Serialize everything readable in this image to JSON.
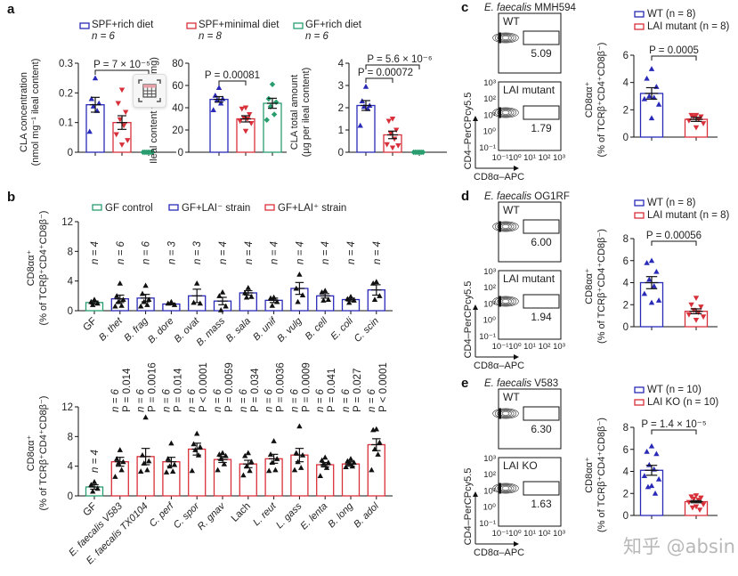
{
  "colors": {
    "blue": "#2a2ab8",
    "red": "#d8303a",
    "green": "#2a9d6f",
    "black": "#111111"
  },
  "overlay_icon": "table-view-icon",
  "watermark": "知乎 @absin",
  "chart_data": [
    {
      "panel": "a",
      "type": "bar",
      "legend": [
        {
          "label": "SPF+rich diet",
          "n": "n = 6",
          "color": "blue"
        },
        {
          "label": "SPF+minimal diet",
          "n": "n = 8",
          "color": "red"
        },
        {
          "label": "GF+rich diet",
          "n": "n = 6",
          "color": "green"
        }
      ],
      "subplots": [
        {
          "ylabel": [
            "CLA concentration",
            "(nmol mg⁻¹ ileal content)"
          ],
          "ylim": [
            0,
            0.3
          ],
          "yticks": [
            0,
            0.1,
            0.2,
            0.3
          ],
          "ytick_labels": [
            "0",
            "0.1",
            "0.2",
            "0.3"
          ],
          "groups": [
            {
              "name": "SPF+rich diet",
              "color": "blue",
              "marker": "up",
              "mean": 0.16,
              "sem": 0.025,
              "points": [
                0.25,
                0.18,
                0.165,
                0.155,
                0.14,
                0.07
              ]
            },
            {
              "name": "SPF+minimal diet",
              "color": "red",
              "marker": "down",
              "mean": 0.1,
              "sem": 0.023,
              "points": [
                0.21,
                0.165,
                0.135,
                0.11,
                0.09,
                0.06,
                0.04,
                0.025
              ]
            },
            {
              "name": "GF+rich diet",
              "color": "green",
              "marker": "diamond",
              "mean": 0,
              "sem": 0,
              "points": [
                0,
                0,
                0,
                0,
                0,
                0
              ]
            }
          ],
          "comparisons": [
            {
              "from": 0,
              "to": 2,
              "label": "P = 7 × 10⁻⁵",
              "level": 1
            }
          ]
        },
        {
          "ylabel": [
            "Ileal content weight (mg)"
          ],
          "ylim": [
            0,
            80
          ],
          "yticks": [
            0,
            20,
            40,
            60,
            80
          ],
          "ytick_labels": [
            "0",
            "20",
            "40",
            "60",
            "80"
          ],
          "groups": [
            {
              "name": "SPF+rich diet",
              "color": "blue",
              "marker": "up",
              "mean": 47.5,
              "sem": 2.5,
              "points": [
                58,
                51,
                48,
                47,
                44,
                38
              ]
            },
            {
              "name": "SPF+minimal diet",
              "color": "red",
              "marker": "down",
              "mean": 30,
              "sem": 2.8,
              "points": [
                40,
                39,
                34,
                31,
                30,
                28,
                26,
                19
              ]
            },
            {
              "name": "GF+rich diet",
              "color": "green",
              "marker": "diamond",
              "mean": 44,
              "sem": 4.5,
              "points": [
                61,
                48,
                45,
                41,
                34,
                29
              ]
            }
          ],
          "comparisons": [
            {
              "from": 0,
              "to": 1,
              "label": "P = 0.00081",
              "level": 1
            }
          ]
        },
        {
          "ylabel": [
            "CLA total amount",
            "(µg per ileal content)"
          ],
          "ylim": [
            0,
            4
          ],
          "yticks": [
            0,
            1,
            2,
            3,
            4
          ],
          "ytick_labels": [
            "0",
            "1",
            "2",
            "3",
            "4"
          ],
          "groups": [
            {
              "name": "SPF+rich diet",
              "color": "blue",
              "marker": "up",
              "mean": 2.1,
              "sem": 0.22,
              "points": [
                2.95,
                2.3,
                2.1,
                2.05,
                1.95,
                1.2
              ]
            },
            {
              "name": "SPF+minimal diet",
              "color": "red",
              "marker": "down",
              "mean": 0.78,
              "sem": 0.17,
              "points": [
                1.5,
                1.4,
                1.0,
                0.85,
                0.6,
                0.35,
                0.3,
                0.2
              ]
            },
            {
              "name": "GF+rich diet",
              "color": "green",
              "marker": "diamond",
              "mean": 0,
              "sem": 0,
              "points": [
                0,
                0,
                0,
                0,
                0,
                0
              ]
            }
          ],
          "comparisons": [
            {
              "from": 0,
              "to": 1,
              "label": "P = 0.00072",
              "level": 1
            },
            {
              "from": 0,
              "to": 2,
              "label": "P = 5.6 × 10⁻⁶",
              "level": 2
            }
          ]
        }
      ]
    },
    {
      "panel": "b",
      "type": "bar",
      "legend": [
        {
          "label": "GF control",
          "color": "green"
        },
        {
          "label": "GF+LAI⁻ strain",
          "color": "blue"
        },
        {
          "label": "GF+LAI⁺ strain",
          "color": "red"
        }
      ],
      "ylabel": [
        "CD8αα⁺",
        "(% of TCRβ⁺CD4⁺CD8β⁻)"
      ],
      "subplots": [
        {
          "ylim": [
            0,
            12
          ],
          "yticks": [
            0,
            4,
            8,
            12
          ],
          "ytick_labels": [
            "0",
            "4",
            "8",
            "12"
          ],
          "categories": [
            "GF",
            "B. thet",
            "B. frag",
            "B. dore",
            "B. ovat",
            "B. mass",
            "B. sala",
            "B. unif",
            "B. vulg",
            "B. cell",
            "E. coli",
            "C. scin"
          ],
          "n_labels": [
            "n = 4",
            "n = 6",
            "n = 6",
            "n = 3",
            "n = 3",
            "n = 4",
            "n = 4",
            "n = 4",
            "n = 4",
            "n = 4",
            "n = 4",
            "n = 4"
          ],
          "colors": [
            "green",
            "blue",
            "blue",
            "blue",
            "blue",
            "blue",
            "blue",
            "blue",
            "blue",
            "blue",
            "blue",
            "blue"
          ],
          "means": [
            1.1,
            1.6,
            1.7,
            0.9,
            2.0,
            1.3,
            2.4,
            1.4,
            3.0,
            2.0,
            1.5,
            2.8
          ],
          "sems": [
            0.2,
            0.5,
            0.5,
            0.1,
            0.9,
            0.5,
            0.3,
            0.3,
            0.8,
            0.3,
            0.2,
            0.7
          ],
          "points": [
            [
              1.5,
              1.2,
              1.0,
              0.8
            ],
            [
              3.7,
              2.0,
              1.5,
              1.2,
              0.7,
              0.6
            ],
            [
              3.4,
              2.3,
              1.5,
              1.2,
              0.8,
              0.6
            ],
            [
              1.2,
              1.0,
              0.8
            ],
            [
              3.7,
              1.1,
              1.0
            ],
            [
              2.5,
              2.0,
              0.6,
              0.1
            ],
            [
              3.1,
              2.4,
              1.9,
              1.8
            ],
            [
              1.8,
              1.7,
              1.2,
              0.7
            ],
            [
              4.9,
              3.0,
              2.1,
              1.2
            ],
            [
              2.7,
              2.5,
              1.5,
              1.4
            ],
            [
              1.9,
              1.6,
              1.4,
              1.1
            ],
            [
              3.9,
              3.7,
              2.0,
              1.5
            ]
          ]
        },
        {
          "ylim": [
            0,
            12
          ],
          "yticks": [
            0,
            4,
            8,
            12
          ],
          "ytick_labels": [
            "0",
            "4",
            "8",
            "12"
          ],
          "categories": [
            "GF",
            "E. faecalis V583",
            "E. faecalis TX0104",
            "C. perf",
            "C. spor",
            "R. gnav",
            "Lach",
            "L. reut",
            "L. gass",
            "E. lenta",
            "B. long",
            "B. adol"
          ],
          "n_labels": [
            "n = 4",
            "n = 6",
            "n = 6",
            "n = 6",
            "n = 6",
            "n = 6",
            "n = 6",
            "n = 6",
            "n = 6",
            "n = 6",
            "n = 6",
            "n = 6"
          ],
          "p_labels": [
            "",
            "P = 0.014",
            "P = 0.0016",
            "P = 0.014",
            "P < 0.0001",
            "P = 0.0059",
            "P = 0.034",
            "P = 0.0036",
            "P = 0.0009",
            "P = 0.041",
            "P = 0.027",
            "P < 0.0001"
          ],
          "colors": [
            "green",
            "red",
            "red",
            "red",
            "red",
            "red",
            "red",
            "red",
            "red",
            "red",
            "red",
            "red"
          ],
          "means": [
            1.2,
            4.6,
            5.3,
            4.6,
            6.3,
            4.9,
            4.3,
            5.0,
            5.5,
            4.2,
            4.3,
            6.9
          ],
          "sems": [
            0.3,
            0.6,
            1.1,
            0.6,
            0.8,
            0.4,
            0.5,
            0.6,
            0.9,
            0.3,
            0.3,
            0.8
          ],
          "points": [
            [
              1.9,
              1.5,
              1.0,
              0.6
            ],
            [
              6.2,
              5.0,
              4.6,
              4.4,
              3.5,
              2.6
            ],
            [
              10.6,
              5.5,
              4.7,
              4.4,
              3.5,
              3.3
            ],
            [
              7.1,
              5.0,
              4.2,
              4.0,
              3.3,
              3.2
            ],
            [
              8.4,
              7.0,
              6.6,
              6.2,
              5.5,
              3.4
            ],
            [
              5.8,
              5.6,
              5.4,
              5.0,
              4.3,
              3.5
            ],
            [
              5.8,
              5.4,
              4.6,
              4.0,
              3.4,
              2.8
            ],
            [
              7.4,
              5.6,
              5.0,
              4.5,
              3.5,
              3.4
            ],
            [
              9.4,
              5.8,
              5.5,
              4.6,
              3.8,
              3.5
            ],
            [
              5.2,
              4.8,
              4.5,
              4.3,
              3.8,
              2.7
            ],
            [
              5.0,
              4.7,
              4.5,
              4.4,
              4.0,
              3.9
            ],
            [
              9.0,
              8.9,
              7.2,
              6.3,
              5.6,
              3.5
            ]
          ]
        }
      ]
    },
    {
      "panel": "c",
      "title_italic": "E. faecalis",
      "title_rest": " MMH594",
      "type": "bar",
      "flow": {
        "gates": [
          {
            "label": "WT",
            "value": "5.09"
          },
          {
            "label": "LAI mutant",
            "value": "1.79"
          }
        ],
        "xlabel": "CD8α–APC",
        "ylabel": "CD4–PerCPcy5.5",
        "ticks": [
          "10⁻¹",
          "10⁰",
          "10¹",
          "10²",
          "10³"
        ]
      },
      "legend": [
        {
          "label": "WT (n = 8)",
          "color": "blue"
        },
        {
          "label": "LAI mutant (n = 8)",
          "color": "red"
        }
      ],
      "ylabel": [
        "CD8αα⁺",
        "(% of TCRβ⁺CD4⁺CD8β⁻)"
      ],
      "ylim": [
        0,
        6
      ],
      "yticks": [
        0,
        2,
        4,
        6
      ],
      "ytick_labels": [
        "0",
        "2",
        "4",
        "6"
      ],
      "groups": [
        {
          "name": "WT",
          "color": "blue",
          "marker": "up",
          "mean": 3.2,
          "sem": 0.42,
          "points": [
            5.0,
            4.3,
            3.7,
            3.0,
            2.9,
            2.8,
            2.4,
            1.4
          ]
        },
        {
          "name": "LAI mutant",
          "color": "red",
          "marker": "down",
          "mean": 1.3,
          "sem": 0.15,
          "points": [
            1.6,
            1.6,
            1.5,
            1.5,
            1.3,
            1.2,
            1.0,
            0.7
          ]
        }
      ],
      "comparison": "P = 0.0005"
    },
    {
      "panel": "d",
      "title_italic": "E. faecalis",
      "title_rest": " OG1RF",
      "type": "bar",
      "flow": {
        "gates": [
          {
            "label": "WT",
            "value": "6.00"
          },
          {
            "label": "LAI mutant",
            "value": "1.94"
          }
        ],
        "xlabel": "CD8α–APC",
        "ylabel": "CD4–PerCPcy5.5",
        "ticks": [
          "10⁻¹",
          "10⁰",
          "10¹",
          "10²",
          "10³"
        ]
      },
      "legend": [
        {
          "label": "WT (n = 8)",
          "color": "blue"
        },
        {
          "label": "LAI mutant (n = 8)",
          "color": "red"
        }
      ],
      "ylabel": [
        "CD8αα⁺",
        "(% of TCRβ⁺CD4⁺CD8β⁻)"
      ],
      "ylim": [
        0,
        8
      ],
      "yticks": [
        0,
        2,
        4,
        6,
        8
      ],
      "ytick_labels": [
        "0",
        "2",
        "4",
        "6",
        "8"
      ],
      "groups": [
        {
          "name": "WT",
          "color": "blue",
          "marker": "up",
          "mean": 4.0,
          "sem": 0.55,
          "points": [
            6.0,
            5.8,
            5.0,
            4.3,
            3.7,
            3.0,
            2.4,
            2.2
          ]
        },
        {
          "name": "LAI mutant",
          "color": "red",
          "marker": "down",
          "mean": 1.4,
          "sem": 0.22,
          "points": [
            2.6,
            2.0,
            1.8,
            1.5,
            1.3,
            1.1,
            0.9,
            0.6
          ]
        }
      ],
      "comparison": "P = 0.00056"
    },
    {
      "panel": "e",
      "title_italic": "E. faecalis",
      "title_rest": " V583",
      "type": "bar",
      "flow": {
        "gates": [
          {
            "label": "WT",
            "value": "6.30"
          },
          {
            "label": "LAI KO",
            "value": "1.63"
          }
        ],
        "xlabel": "CD8α–APC",
        "ylabel": "CD4–PerCPcy5.5",
        "ticks": [
          "10⁻¹",
          "10⁰",
          "10¹",
          "10²",
          "10³"
        ]
      },
      "legend": [
        {
          "label": "WT (n = 10)",
          "color": "blue"
        },
        {
          "label": "LAI KO (n = 10)",
          "color": "red"
        }
      ],
      "ylabel": [
        "CD8αα⁺",
        "(% of TCRβ⁺CD4⁺CD8β⁻)"
      ],
      "ylim": [
        0,
        8
      ],
      "yticks": [
        0,
        2,
        4,
        6,
        8
      ],
      "ytick_labels": [
        "0",
        "2",
        "4",
        "6",
        "8"
      ],
      "groups": [
        {
          "name": "WT",
          "color": "blue",
          "marker": "up",
          "mean": 4.1,
          "sem": 0.45,
          "points": [
            6.3,
            5.8,
            5.6,
            4.6,
            4.2,
            3.6,
            3.3,
            2.7,
            2.6,
            2.0
          ]
        },
        {
          "name": "LAI KO",
          "color": "red",
          "marker": "down",
          "mean": 1.25,
          "sem": 0.1,
          "points": [
            1.8,
            1.7,
            1.6,
            1.5,
            1.4,
            1.2,
            1.0,
            0.8,
            0.7,
            0.5
          ]
        }
      ],
      "comparison": "P = 1.4 × 10⁻⁵"
    }
  ]
}
